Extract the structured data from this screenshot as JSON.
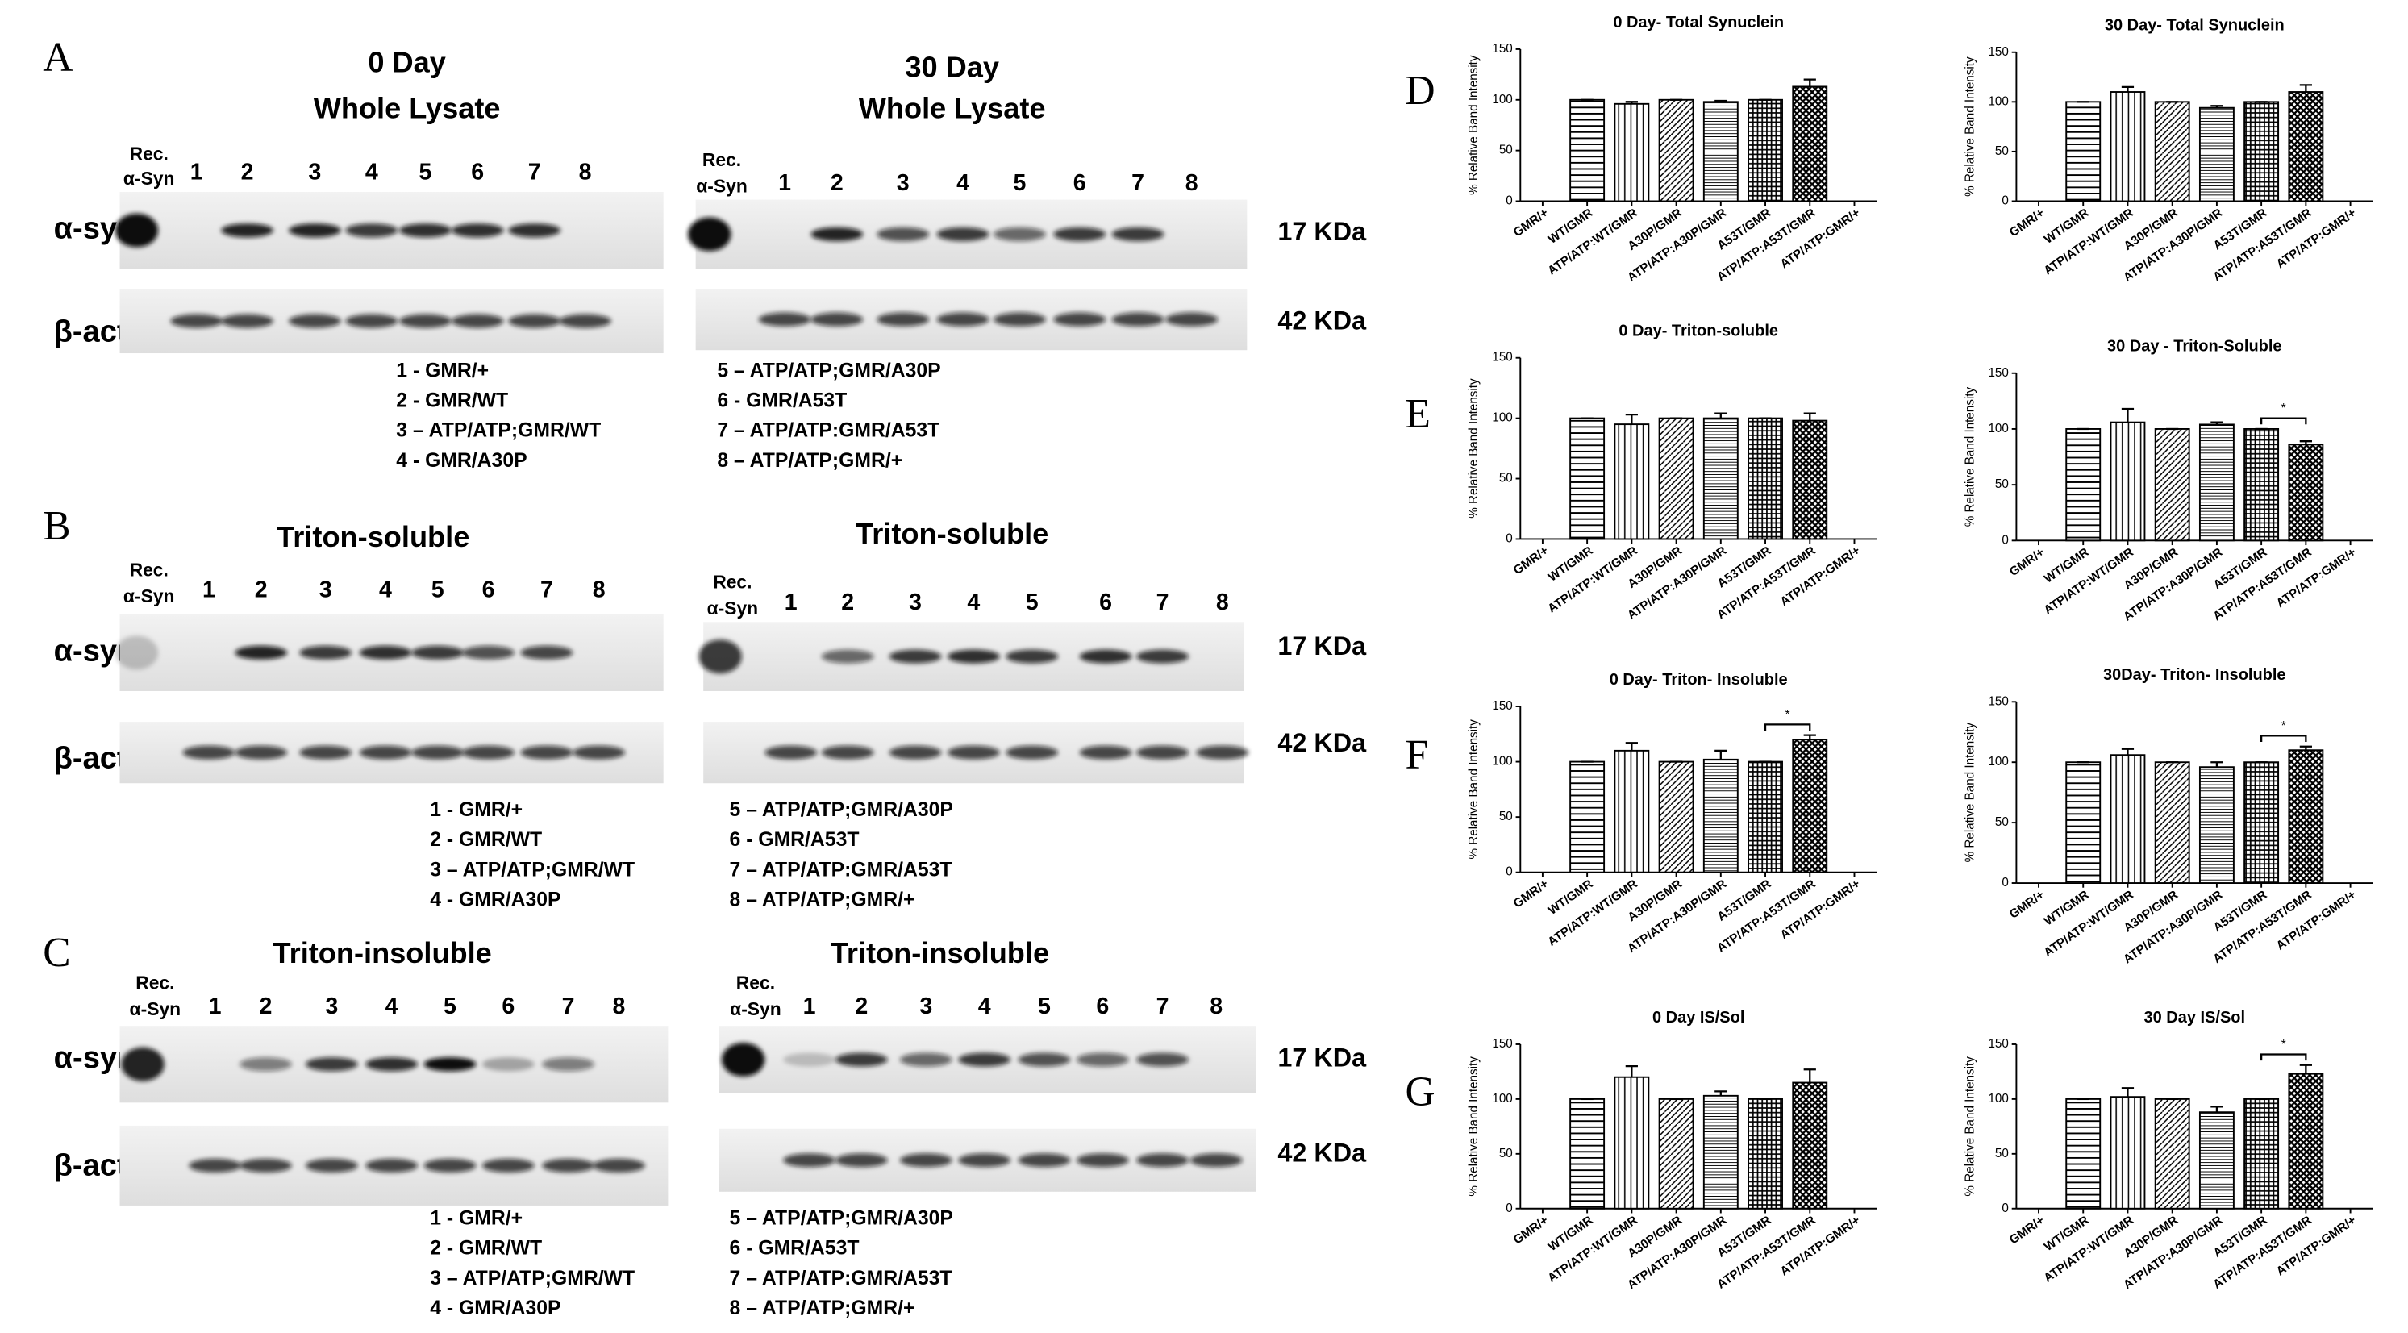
{
  "figure": {
    "panels": [
      {
        "letter": "A",
        "row_labels": [
          "α-syn",
          "β-act"
        ],
        "sizes": [
          "17 KDa",
          "42 KDa"
        ],
        "left": {
          "title": [
            "0 Day",
            "Whole Lysate"
          ],
          "rec": [
            "Rec.",
            "α-Syn"
          ],
          "lanes": [
            "1",
            "2",
            "3",
            "4",
            "5",
            "6",
            "7",
            "8"
          ],
          "legend": [
            "1 - GMR/+",
            "2 - GMR/WT",
            "3 – ATP/ATP;GMR/WT",
            "4 - GMR/A30P"
          ]
        },
        "right": {
          "title": [
            "30 Day",
            "Whole Lysate"
          ],
          "rec": [
            "Rec.",
            "α-Syn"
          ],
          "lanes": [
            "1",
            "2",
            "3",
            "4",
            "5",
            "6",
            "7",
            "8"
          ],
          "legend": [
            "5 – ATP/ATP;GMR/A30P",
            "6 - GMR/A53T",
            "7 – ATP/ATP:GMR/A53T",
            "8 – ATP/ATP;GMR/+"
          ]
        }
      },
      {
        "letter": "B",
        "row_labels": [
          "α-syn",
          "β-act"
        ],
        "sizes": [
          "17 KDa",
          "42 KDa"
        ],
        "left": {
          "title": [
            "Triton-soluble"
          ],
          "rec": [
            "Rec.",
            "α-Syn"
          ],
          "lanes": [
            "1",
            "2",
            "3",
            "4",
            "5",
            "6",
            "7",
            "8"
          ],
          "legend": [
            "1 - GMR/+",
            "2 - GMR/WT",
            "3 – ATP/ATP;GMR/WT",
            "4 - GMR/A30P"
          ]
        },
        "right": {
          "title": [
            "Triton-soluble"
          ],
          "rec": [
            "Rec.",
            "α-Syn"
          ],
          "lanes": [
            "1",
            "2",
            "3",
            "4",
            "5",
            "6",
            "7",
            "8"
          ],
          "legend": [
            "5 – ATP/ATP;GMR/A30P",
            "6 - GMR/A53T",
            "7 – ATP/ATP:GMR/A53T",
            "8 – ATP/ATP;GMR/+"
          ]
        }
      },
      {
        "letter": "C",
        "row_labels": [
          "α-syn",
          "β-act"
        ],
        "sizes": [
          "17 KDa",
          "42 KDa"
        ],
        "left": {
          "title": [
            "Triton-insoluble"
          ],
          "rec": [
            "Rec.",
            "α-Syn"
          ],
          "lanes": [
            "1",
            "2",
            "3",
            "4",
            "5",
            "6",
            "7",
            "8"
          ],
          "legend": [
            "1 - GMR/+",
            "2 - GMR/WT",
            "3 – ATP/ATP;GMR/WT",
            "4 - GMR/A30P"
          ]
        },
        "right": {
          "title": [
            "Triton-insoluble"
          ],
          "rec": [
            "Rec.",
            "α-Syn"
          ],
          "lanes": [
            "1",
            "2",
            "3",
            "4",
            "5",
            "6",
            "7",
            "8"
          ],
          "legend": [
            "5 – ATP/ATP;GMR/A30P",
            "6 - GMR/A53T",
            "7 – ATP/ATP:GMR/A53T",
            "8 – ATP/ATP;GMR/+"
          ]
        }
      }
    ]
  },
  "chart_data": [
    {
      "type": "bar",
      "panel_letter": "D",
      "title": "0 Day- Total Synuclein",
      "ylabel": "% Relative Band Intensity",
      "categories": [
        "GMR/+",
        "WT/GMR",
        "ATP/ATP:WT/GMR",
        "A30P/GMR",
        "ATP/ATP:A30P/GMR",
        "A53T/GMR",
        "ATP/ATP:A53T/GMR",
        "ATP/ATP:GMR/+"
      ],
      "values": [
        null,
        100,
        96,
        100,
        98,
        100,
        113,
        null
      ],
      "errors": [
        null,
        0,
        2,
        0,
        1,
        0,
        7,
        null
      ],
      "ylim": [
        0,
        150
      ],
      "yticks": [
        0,
        50,
        100,
        150
      ]
    },
    {
      "type": "bar",
      "title": "30 Day- Total Synuclein",
      "ylabel": "% Relative Band Intensity",
      "categories": [
        "GMR/+",
        "WT/GMR",
        "ATP/ATP:WT/GMR",
        "A30P/GMR",
        "ATP/ATP:A30P/GMR",
        "A53T/GMR",
        "ATP/ATP:A53T/GMR",
        "ATP/ATP:GMR/+"
      ],
      "values": [
        null,
        100,
        110,
        100,
        94,
        100,
        110,
        null
      ],
      "errors": [
        null,
        0,
        5,
        0,
        2,
        0,
        7,
        null
      ],
      "ylim": [
        0,
        150
      ],
      "yticks": [
        0,
        50,
        100,
        150
      ]
    },
    {
      "type": "bar",
      "panel_letter": "E",
      "title": "0 Day- Triton-soluble",
      "ylabel": "% Relative Band Intensity",
      "categories": [
        "GMR/+",
        "WT/GMR",
        "ATP/ATP:WT/GMR",
        "A30P/GMR",
        "ATP/ATP:A30P/GMR",
        "A53T/GMR",
        "ATP/ATP:A53T/GMR",
        "ATP/ATP:GMR/+"
      ],
      "values": [
        null,
        100,
        95,
        100,
        100,
        100,
        98,
        null
      ],
      "errors": [
        null,
        0,
        8,
        0,
        4,
        0,
        6,
        null
      ],
      "ylim": [
        0,
        150
      ],
      "yticks": [
        0,
        50,
        100,
        150
      ]
    },
    {
      "type": "bar",
      "title": "30 Day - Triton-Soluble",
      "ylabel": "% Relative Band Intensity",
      "categories": [
        "GMR/+",
        "WT/GMR",
        "ATP/ATP:WT/GMR",
        "A30P/GMR",
        "ATP/ATP:A30P/GMR",
        "A53T/GMR",
        "ATP/ATP:A53T/GMR",
        "ATP/ATP:GMR/+"
      ],
      "values": [
        null,
        100,
        106,
        100,
        104,
        100,
        86,
        null
      ],
      "errors": [
        null,
        0,
        12,
        0,
        2,
        0,
        3,
        null
      ],
      "ylim": [
        0,
        150
      ],
      "yticks": [
        0,
        50,
        100,
        150
      ],
      "significance": [
        {
          "label": "*",
          "between": [
            "A53T/GMR",
            "ATP/ATP:A53T/GMR"
          ]
        }
      ]
    },
    {
      "type": "bar",
      "panel_letter": "F",
      "title": "0 Day- Triton- Insoluble",
      "ylabel": "% Relative Band Intensity",
      "categories": [
        "GMR/+",
        "WT/GMR",
        "ATP/ATP:WT/GMR",
        "A30P/GMR",
        "ATP/ATP:A30P/GMR",
        "A53T/GMR",
        "ATP/ATP:A53T/GMR",
        "ATP/ATP:GMR/+"
      ],
      "values": [
        null,
        100,
        110,
        100,
        102,
        100,
        120,
        null
      ],
      "errors": [
        null,
        0,
        7,
        0,
        8,
        0,
        4,
        null
      ],
      "ylim": [
        0,
        150
      ],
      "yticks": [
        0,
        50,
        100,
        150
      ],
      "significance": [
        {
          "label": "*",
          "between": [
            "A53T/GMR",
            "ATP/ATP:A53T/GMR"
          ]
        }
      ]
    },
    {
      "type": "bar",
      "title": "30Day- Triton- Insoluble",
      "ylabel": "% Relative Band Intensity",
      "categories": [
        "GMR/+",
        "WT/GMR",
        "ATP/ATP:WT/GMR",
        "A30P/GMR",
        "ATP/ATP:A30P/GMR",
        "A53T/GMR",
        "ATP/ATP:A53T/GMR",
        "ATP/ATP:GMR/+"
      ],
      "values": [
        null,
        100,
        106,
        100,
        96,
        100,
        110,
        null
      ],
      "errors": [
        null,
        0,
        5,
        0,
        4,
        0,
        3,
        null
      ],
      "ylim": [
        0,
        150
      ],
      "yticks": [
        0,
        50,
        100,
        150
      ],
      "significance": [
        {
          "label": "*",
          "between": [
            "A53T/GMR",
            "ATP/ATP:A53T/GMR"
          ]
        }
      ]
    },
    {
      "type": "bar",
      "panel_letter": "G",
      "title": "0 Day IS/Sol",
      "ylabel": "% Relative Band Intensity",
      "categories": [
        "GMR/+",
        "WT/GMR",
        "ATP/ATP:WT/GMR",
        "A30P/GMR",
        "ATP/ATP:A30P/GMR",
        "A53T/GMR",
        "ATP/ATP:A53T/GMR",
        "ATP/ATP:GMR/+"
      ],
      "values": [
        null,
        100,
        120,
        100,
        103,
        100,
        115,
        null
      ],
      "errors": [
        null,
        0,
        10,
        0,
        4,
        0,
        12,
        null
      ],
      "ylim": [
        0,
        150
      ],
      "yticks": [
        0,
        50,
        100,
        150
      ]
    },
    {
      "type": "bar",
      "title": "30 Day IS/Sol",
      "ylabel": "% Relative Band Intensity",
      "categories": [
        "GMR/+",
        "WT/GMR",
        "ATP/ATP:WT/GMR",
        "A30P/GMR",
        "ATP/ATP:A30P/GMR",
        "A53T/GMR",
        "ATP/ATP:A53T/GMR",
        "ATP/ATP:GMR/+"
      ],
      "values": [
        null,
        100,
        102,
        100,
        88,
        100,
        123,
        null
      ],
      "errors": [
        null,
        0,
        8,
        0,
        5,
        0,
        8,
        null
      ],
      "ylim": [
        0,
        150
      ],
      "yticks": [
        0,
        50,
        100,
        150
      ],
      "significance": [
        {
          "label": "*",
          "between": [
            "A53T/GMR",
            "ATP/ATP:A53T/GMR"
          ]
        }
      ]
    }
  ]
}
